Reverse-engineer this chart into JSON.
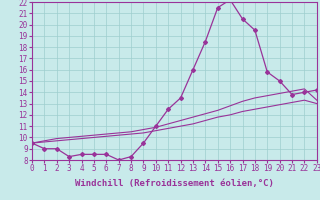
{
  "xlabel": "Windchill (Refroidissement éolien,°C)",
  "background_color": "#c8eaea",
  "line_color": "#993399",
  "x_min": 0,
  "x_max": 23,
  "y_min": 8,
  "y_max": 22,
  "curve1_x": [
    0,
    1,
    2,
    3,
    4,
    5,
    6,
    7,
    8,
    9,
    10,
    11,
    12,
    13,
    14,
    15,
    16,
    17,
    18,
    19,
    20,
    21,
    22,
    23
  ],
  "curve1_y": [
    9.5,
    9.0,
    9.0,
    8.3,
    8.5,
    8.5,
    8.5,
    8.0,
    8.3,
    9.5,
    11.0,
    12.5,
    13.5,
    16.0,
    18.5,
    21.5,
    22.2,
    20.5,
    19.5,
    15.8,
    15.0,
    13.8,
    14.0,
    14.2
  ],
  "curve2_x": [
    0,
    1,
    2,
    3,
    4,
    5,
    6,
    7,
    8,
    9,
    10,
    11,
    12,
    13,
    14,
    15,
    16,
    17,
    18,
    19,
    20,
    21,
    22,
    23
  ],
  "curve2_y": [
    9.5,
    9.6,
    9.7,
    9.8,
    9.9,
    10.0,
    10.1,
    10.2,
    10.3,
    10.4,
    10.6,
    10.8,
    11.0,
    11.2,
    11.5,
    11.8,
    12.0,
    12.3,
    12.5,
    12.7,
    12.9,
    13.1,
    13.3,
    13.0
  ],
  "curve3_x": [
    0,
    1,
    2,
    3,
    4,
    5,
    6,
    7,
    8,
    9,
    10,
    11,
    12,
    13,
    14,
    15,
    16,
    17,
    18,
    19,
    20,
    21,
    22,
    23
  ],
  "curve3_y": [
    9.5,
    9.7,
    9.9,
    10.0,
    10.1,
    10.2,
    10.3,
    10.4,
    10.5,
    10.7,
    10.9,
    11.2,
    11.5,
    11.8,
    12.1,
    12.4,
    12.8,
    13.2,
    13.5,
    13.7,
    13.9,
    14.1,
    14.3,
    13.3
  ],
  "grid_color": "#9ecece",
  "xlabel_fontsize": 6.5,
  "tick_fontsize": 5.5,
  "ytick_fontsize": 5.5
}
